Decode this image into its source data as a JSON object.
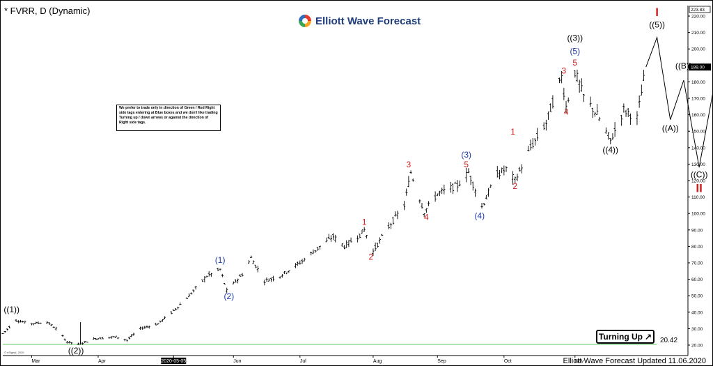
{
  "header": {
    "title": "* FVRR, D (Dynamic)"
  },
  "logo": {
    "text": "Elliott Wave Forecast",
    "colors": [
      "#e53a2f",
      "#f6a623",
      "#3aa655",
      "#2e6fbd"
    ]
  },
  "notice": {
    "text": "We prefer to trade only in direction of Green / Red Right side tags entering at Blue boxes and we don't like trading Turning up / down arrows or against the direction of Right side tags."
  },
  "badge": {
    "label": "Turning Up",
    "arrow": "↗"
  },
  "level": {
    "value": "20.42",
    "color": "#7fd27f"
  },
  "footer": {
    "text": "Elliott Wave Forecast Updated 11.06.2020"
  },
  "esignal": {
    "text": "© eSignal, 2020"
  },
  "chart_data": {
    "type": "ohlc",
    "title": "* FVRR, D (Dynamic)",
    "ylim": [
      20,
      223.83
    ],
    "y_ticks": [
      20,
      30,
      40,
      50,
      60,
      70,
      80,
      90,
      100,
      110,
      120,
      130,
      140,
      150,
      160,
      170,
      180,
      190,
      200,
      210,
      220
    ],
    "y_tick_labels": [
      "20.00",
      "30.00",
      "40.00",
      "50.00",
      "60.00",
      "70.00",
      "80.00",
      "90.00",
      "100.00",
      "110.00",
      "120.00",
      "130.00",
      "140.00",
      "150.00",
      "160.00",
      "170.00",
      "180.00",
      "190.00",
      "200.00",
      "210.00",
      "220.00"
    ],
    "high_label": "223.83",
    "last_price_label": "189.00",
    "last_price": 189.0,
    "x_range": [
      "2020-02-18",
      "2020-12-11"
    ],
    "x_ticks": [
      {
        "date": "2020-03-02",
        "label": "Mar"
      },
      {
        "date": "2020-04-01",
        "label": "Apr"
      },
      {
        "date": "2020-05-05",
        "label": "2020-05-05",
        "highlight": true
      },
      {
        "date": "2020-06-01",
        "label": "Jun"
      },
      {
        "date": "2020-07-01",
        "label": "Jul"
      },
      {
        "date": "2020-08-03",
        "label": "Aug"
      },
      {
        "date": "2020-09-01",
        "label": "Sep"
      },
      {
        "date": "2020-10-01",
        "label": "Oct"
      },
      {
        "date": "2020-11-02",
        "label": "Nov"
      }
    ],
    "horizontal_line": {
      "value": 20.42,
      "label": "20.42"
    },
    "price_path": [
      [
        "2020-02-18",
        27
      ],
      [
        "2020-02-24",
        35
      ],
      [
        "2020-03-02",
        33
      ],
      [
        "2020-03-09",
        34
      ],
      [
        "2020-03-13",
        30
      ],
      [
        "2020-03-18",
        22
      ],
      [
        "2020-03-23",
        20.5
      ],
      [
        "2020-03-31",
        24
      ],
      [
        "2020-04-09",
        25
      ],
      [
        "2020-04-14",
        23
      ],
      [
        "2020-04-20",
        30
      ],
      [
        "2020-04-28",
        33
      ],
      [
        "2020-05-06",
        42
      ],
      [
        "2020-05-12",
        50
      ],
      [
        "2020-05-20",
        62
      ],
      [
        "2020-05-26",
        66
      ],
      [
        "2020-05-29",
        53
      ],
      [
        "2020-06-05",
        63
      ],
      [
        "2020-06-09",
        73
      ],
      [
        "2020-06-15",
        59
      ],
      [
        "2020-06-22",
        62
      ],
      [
        "2020-07-01",
        70
      ],
      [
        "2020-07-10",
        80
      ],
      [
        "2020-07-16",
        86
      ],
      [
        "2020-07-21",
        80
      ],
      [
        "2020-07-28",
        87
      ],
      [
        "2020-07-30",
        90
      ],
      [
        "2020-08-03",
        77
      ],
      [
        "2020-08-10",
        92
      ],
      [
        "2020-08-17",
        105
      ],
      [
        "2020-08-20",
        125
      ],
      [
        "2020-08-26",
        101
      ],
      [
        "2020-09-01",
        112
      ],
      [
        "2020-09-10",
        117
      ],
      [
        "2020-09-15",
        125
      ],
      [
        "2020-09-21",
        104
      ],
      [
        "2020-09-28",
        124
      ],
      [
        "2020-10-02",
        127
      ],
      [
        "2020-10-06",
        120
      ],
      [
        "2020-10-13",
        140
      ],
      [
        "2020-10-20",
        155
      ],
      [
        "2020-10-23",
        168
      ],
      [
        "2020-10-27",
        183
      ],
      [
        "2020-10-29",
        165
      ],
      [
        "2020-11-02",
        186
      ],
      [
        "2020-11-06",
        171
      ],
      [
        "2020-11-12",
        160
      ],
      [
        "2020-11-18",
        144
      ],
      [
        "2020-11-24",
        163
      ],
      [
        "2020-11-30",
        158
      ],
      [
        "2020-12-04",
        189
      ]
    ],
    "projection": [
      [
        "2020-12-04",
        189
      ],
      [
        "2020-12-09",
        207
      ],
      [
        "2020-12-15",
        157
      ],
      [
        "2020-12-21",
        181
      ],
      [
        "2020-12-28",
        128
      ],
      [
        "2021-01-08",
        209
      ]
    ],
    "wave_labels": [
      {
        "text": "((1))",
        "date": "2020-02-22",
        "price": 40,
        "color": "#000000"
      },
      {
        "text": "((2))",
        "date": "2020-03-22",
        "price": 15,
        "color": "#000000"
      },
      {
        "text": "(1)",
        "date": "2020-05-26",
        "price": 70,
        "color": "#1e3aa8"
      },
      {
        "text": "(2)",
        "date": "2020-05-30",
        "price": 48,
        "color": "#1e3aa8"
      },
      {
        "text": "1",
        "date": "2020-07-30",
        "price": 93,
        "color": "#d51c1c"
      },
      {
        "text": "2",
        "date": "2020-08-02",
        "price": 72,
        "color": "#d51c1c"
      },
      {
        "text": "3",
        "date": "2020-08-19",
        "price": 128,
        "color": "#d51c1c"
      },
      {
        "text": "4",
        "date": "2020-08-27",
        "price": 96,
        "color": "#d51c1c"
      },
      {
        "text": "(3)",
        "date": "2020-09-14",
        "price": 134,
        "color": "#1e3aa8"
      },
      {
        "text": "5",
        "date": "2020-09-14",
        "price": 128,
        "color": "#d51c1c"
      },
      {
        "text": "(4)",
        "date": "2020-09-20",
        "price": 97,
        "color": "#1e3aa8"
      },
      {
        "text": "1",
        "date": "2020-10-05",
        "price": 148,
        "color": "#d51c1c"
      },
      {
        "text": "2",
        "date": "2020-10-06",
        "price": 115,
        "color": "#d51c1c"
      },
      {
        "text": "3",
        "date": "2020-10-28",
        "price": 185,
        "color": "#d51c1c"
      },
      {
        "text": "4",
        "date": "2020-10-29",
        "price": 160,
        "color": "#d51c1c"
      },
      {
        "text": "((3))",
        "date": "2020-11-02",
        "price": 205,
        "color": "#000000"
      },
      {
        "text": "(5)",
        "date": "2020-11-02",
        "price": 197,
        "color": "#1e3aa8"
      },
      {
        "text": "5",
        "date": "2020-11-02",
        "price": 190,
        "color": "#d51c1c"
      },
      {
        "text": "((4))",
        "date": "2020-11-18",
        "price": 137,
        "color": "#000000"
      },
      {
        "text": "((5))",
        "date": "2020-12-09",
        "price": 213,
        "color": "#000000"
      },
      {
        "text": "((A))",
        "date": "2020-12-15",
        "price": 150,
        "color": "#000000"
      },
      {
        "text": "((B))",
        "date": "2020-12-21",
        "price": 188,
        "color": "#000000"
      },
      {
        "text": "((C))",
        "date": "2020-12-28",
        "price": 122,
        "color": "#000000"
      }
    ],
    "degree_labels": [
      {
        "text": "I",
        "date": "2020-12-09",
        "price": 220,
        "color": "#d51c1c"
      },
      {
        "text": "II",
        "date": "2020-12-28",
        "price": 113,
        "color": "#d51c1c"
      }
    ]
  }
}
